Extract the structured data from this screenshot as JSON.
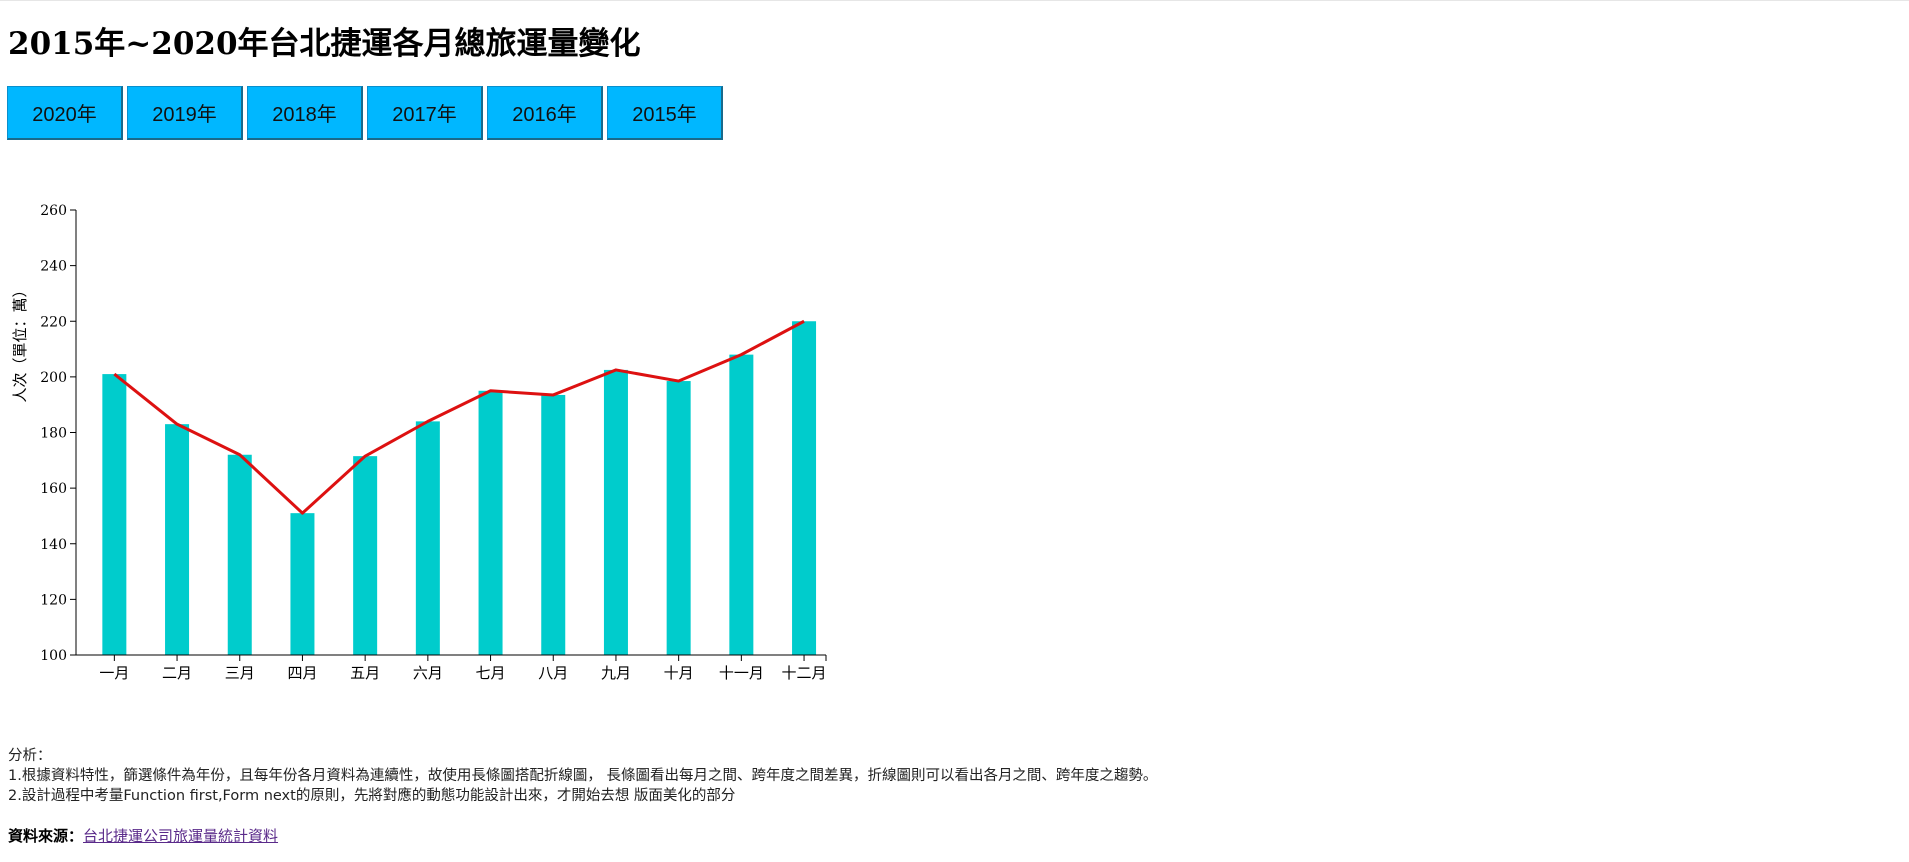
{
  "page": {
    "title": "2015年~2020年台北捷運各月總旅運量變化"
  },
  "year_tabs": [
    "2020年",
    "2019年",
    "2018年",
    "2017年",
    "2016年",
    "2015年"
  ],
  "colors": {
    "button_bg": "#00b7ff",
    "bar": "#00cccc",
    "line": "#dd1111"
  },
  "chart_data": {
    "type": "bar",
    "categories": [
      "一月",
      "二月",
      "三月",
      "四月",
      "五月",
      "六月",
      "七月",
      "八月",
      "九月",
      "十月",
      "十一月",
      "十二月"
    ],
    "series": [
      {
        "type": "bar",
        "values": [
          201,
          183,
          172,
          151,
          171.5,
          184,
          195,
          193.5,
          202.5,
          198.5,
          208,
          220
        ]
      },
      {
        "type": "line",
        "values": [
          201,
          183,
          172,
          151,
          171.5,
          184,
          195,
          193.5,
          202.5,
          198.5,
          208,
          220
        ]
      }
    ],
    "ylabel": "人次（單位：萬）",
    "ylim": [
      100,
      260
    ],
    "yticks": [
      100,
      120,
      140,
      160,
      180,
      200,
      220,
      240,
      260
    ],
    "grid": false
  },
  "analysis": {
    "heading": "分析：",
    "line1": "1.根據資料特性，篩選條件為年份，且每年份各月資料為連續性，故使用長條圖搭配折線圖， 長條圖看出每月之間、跨年度之間差異，折線圖則可以看出各月之間、跨年度之趨勢。",
    "line2": "2.設計過程中考量Function first,Form next的原則，先將對應的動態功能設計出來，才開始去想 版面美化的部分"
  },
  "source": {
    "label": "資料來源：",
    "link_text": "台北捷運公司旅運量統計資料"
  }
}
